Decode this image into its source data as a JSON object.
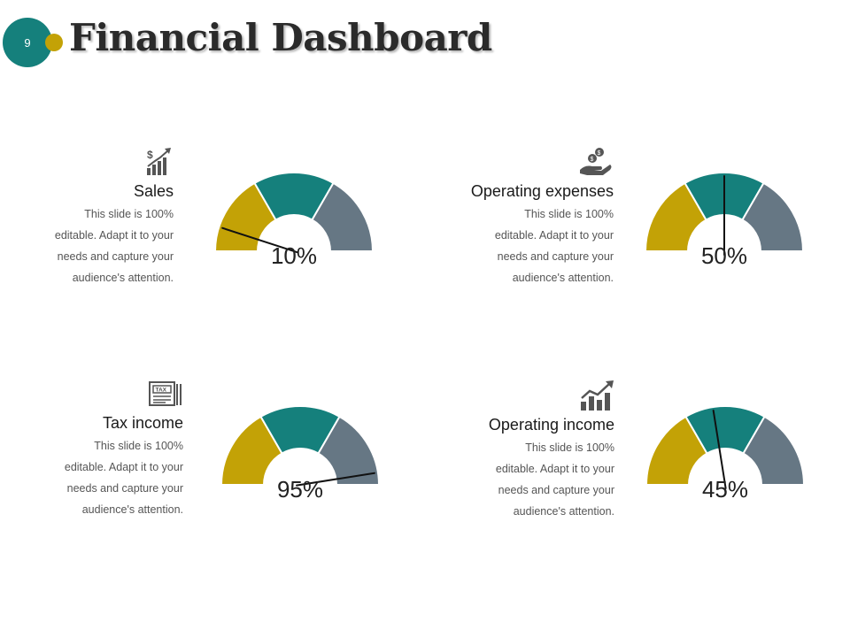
{
  "slide": {
    "number": "9",
    "title": "Financial Dashboard"
  },
  "colors": {
    "band1": "#c3a206",
    "band2": "#15807c",
    "band3": "#667784",
    "needle": "#111111",
    "badge": "#15807c",
    "dot": "#c3a206"
  },
  "description": "This slide is 100% editable. Adapt it to your needs and capture your audience's attention.",
  "description_lines": [
    "This slide is 100%",
    "editable. Adapt it to your",
    "needs and capture your",
    "audience's attention."
  ],
  "chart_data": [
    {
      "type": "gauge",
      "title": "Sales",
      "icon": "dollar-growth-chart-icon",
      "value": 10,
      "label": "10%",
      "min": 0,
      "max": 100
    },
    {
      "type": "gauge",
      "title": "Operating expenses",
      "icon": "money-hand-icon",
      "value": 50,
      "label": "50%",
      "min": 0,
      "max": 100
    },
    {
      "type": "gauge",
      "title": "Tax income",
      "icon": "tax-document-icon",
      "value": 95,
      "label": "95%",
      "min": 0,
      "max": 100
    },
    {
      "type": "gauge",
      "title": "Operating income",
      "icon": "growth-bars-icon",
      "value": 45,
      "label": "45%",
      "min": 0,
      "max": 100
    }
  ]
}
